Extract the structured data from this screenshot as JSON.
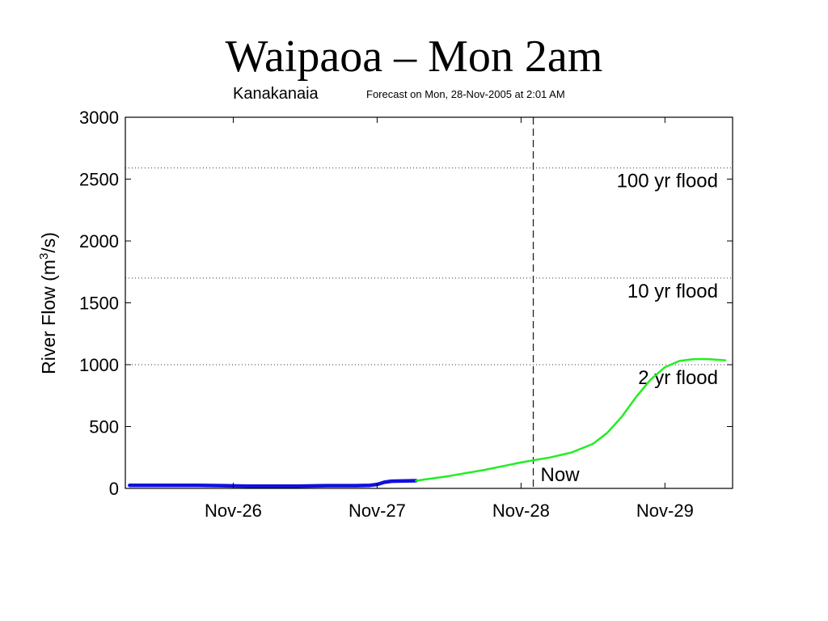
{
  "slide": {
    "title": "Waipaoa – Mon 2am"
  },
  "colors": {
    "observed": "#1010dd",
    "forecast": "#22ee22",
    "axis": "#000000"
  },
  "chart_data": {
    "type": "line",
    "station": "Kanakanaia",
    "subtitle": "Forecast on Mon, 28-Nov-2005 at  2:01 AM",
    "ylabel_main": "River Flow (m",
    "ylabel_sup": "3",
    "ylabel_end": "/s)",
    "ylim": [
      0,
      3000
    ],
    "xlim": [
      25.25,
      29.47
    ],
    "yticks": [
      {
        "value": 0,
        "label": "0"
      },
      {
        "value": 500,
        "label": "500"
      },
      {
        "value": 1000,
        "label": "1000"
      },
      {
        "value": 1500,
        "label": "1500"
      },
      {
        "value": 2000,
        "label": "2000"
      },
      {
        "value": 2500,
        "label": "2500"
      },
      {
        "value": 3000,
        "label": "3000"
      }
    ],
    "xticks": [
      {
        "value": 26,
        "label": "Nov-26"
      },
      {
        "value": 27,
        "label": "Nov-27"
      },
      {
        "value": 28,
        "label": "Nov-28"
      },
      {
        "value": 29,
        "label": "Nov-29"
      }
    ],
    "thresholds": [
      {
        "value": 2590,
        "label": "100 yr flood"
      },
      {
        "value": 1700,
        "label": "10 yr flood"
      },
      {
        "value": 1000,
        "label": "2 yr flood"
      }
    ],
    "now": {
      "x": 28.085,
      "label": "Now"
    },
    "series": [
      {
        "kind": "observed",
        "points": [
          [
            25.28,
            25
          ],
          [
            25.5,
            25
          ],
          [
            25.75,
            25
          ],
          [
            25.92,
            22
          ],
          [
            26.1,
            18
          ],
          [
            26.3,
            18
          ],
          [
            26.45,
            18
          ],
          [
            26.65,
            22
          ],
          [
            26.85,
            22
          ],
          [
            26.95,
            25
          ],
          [
            27.0,
            32
          ],
          [
            27.05,
            50
          ],
          [
            27.1,
            58
          ],
          [
            27.2,
            60
          ],
          [
            27.27,
            62
          ]
        ]
      },
      {
        "kind": "forecast",
        "points": [
          [
            27.27,
            62
          ],
          [
            27.5,
            100
          ],
          [
            27.75,
            150
          ],
          [
            28.0,
            210
          ],
          [
            28.2,
            250
          ],
          [
            28.35,
            290
          ],
          [
            28.5,
            360
          ],
          [
            28.6,
            450
          ],
          [
            28.7,
            580
          ],
          [
            28.8,
            740
          ],
          [
            28.9,
            880
          ],
          [
            29.0,
            980
          ],
          [
            29.1,
            1030
          ],
          [
            29.2,
            1045
          ],
          [
            29.3,
            1045
          ],
          [
            29.42,
            1035
          ]
        ]
      }
    ]
  }
}
